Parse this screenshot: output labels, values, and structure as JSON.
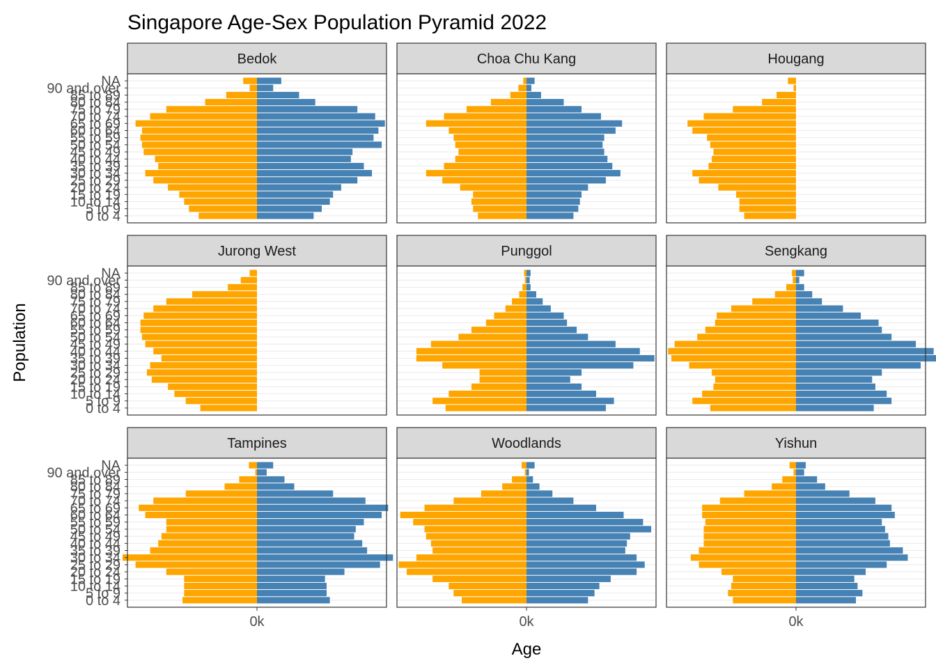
{
  "title": "Singapore Age-Sex Population Pyramid 2022",
  "xlabel": "Age",
  "ylabel": "Population",
  "colors": {
    "female": "#FFA500",
    "male": "#4682B4",
    "strip_bg": "#D9D9D9",
    "grid": "#EBEBEB",
    "border": "#333333",
    "tick_text": "#4D4D4D"
  },
  "chart_data": {
    "type": "bar",
    "orientation": "horizontal-pyramid",
    "facet_layout": "3x3",
    "x_tick_labels": [
      "0k"
    ],
    "categories": [
      "0 to 4",
      "5 to 9",
      "10 to 14",
      "15 to 19",
      "20 to 24",
      "25 to 29",
      "30 to 34",
      "35 to 39",
      "40 to 44",
      "45 to 49",
      "50 to 54",
      "55 to 59",
      "60 to 64",
      "65 to 69",
      "70 to 74",
      "75 to 79",
      "80 to 84",
      "85 to 89",
      "90 and over",
      "NA"
    ],
    "axis_range": [
      -8,
      8
    ],
    "facets": [
      {
        "name": "Bedok",
        "female": [
          3.6,
          4.2,
          4.5,
          4.8,
          5.5,
          6.4,
          6.9,
          6.1,
          6.3,
          7.0,
          7.1,
          7.2,
          7.1,
          7.5,
          6.6,
          5.6,
          3.2,
          1.9,
          0.45,
          0.85
        ],
        "male": [
          3.5,
          4.0,
          4.5,
          4.7,
          5.2,
          6.2,
          7.1,
          6.6,
          5.8,
          5.9,
          7.7,
          7.2,
          7.5,
          7.9,
          7.3,
          6.2,
          3.6,
          2.6,
          1.0,
          1.5
        ]
      },
      {
        "name": "Choa Chu Kang",
        "female": [
          3.0,
          3.3,
          3.4,
          3.3,
          4.1,
          5.2,
          6.2,
          5.1,
          4.4,
          4.2,
          4.4,
          4.5,
          4.8,
          6.2,
          5.1,
          3.7,
          2.2,
          1.0,
          0.5,
          0.2
        ],
        "male": [
          2.9,
          3.2,
          3.3,
          3.4,
          3.8,
          4.9,
          5.8,
          5.3,
          5.0,
          4.8,
          4.7,
          4.8,
          5.5,
          5.9,
          4.6,
          3.4,
          2.3,
          0.9,
          0.3,
          0.5
        ]
      },
      {
        "name": "Hougang",
        "female": [
          3.2,
          3.5,
          3.5,
          3.7,
          4.8,
          6.0,
          6.4,
          5.4,
          5.2,
          5.1,
          5.3,
          5.5,
          6.4,
          6.7,
          5.7,
          3.9,
          2.1,
          1.2,
          0.15,
          0.5
        ]
      },
      {
        "name": "Jurong West",
        "female": [
          3.5,
          4.4,
          5.1,
          5.5,
          6.5,
          6.8,
          6.6,
          5.9,
          6.4,
          6.9,
          7.1,
          7.2,
          7.2,
          7.0,
          6.4,
          5.6,
          4.0,
          1.8,
          1.0,
          0.45
        ]
      },
      {
        "name": "Punggol",
        "female": [
          5.0,
          5.8,
          4.8,
          3.4,
          2.9,
          2.9,
          5.2,
          6.8,
          6.8,
          5.9,
          4.2,
          3.4,
          2.5,
          2.0,
          1.3,
          0.9,
          0.45,
          0.25,
          0.1,
          0.15
        ],
        "male": [
          4.9,
          5.4,
          4.3,
          3.4,
          2.7,
          3.4,
          6.6,
          7.9,
          7.0,
          5.5,
          3.8,
          3.1,
          2.5,
          2.3,
          1.5,
          1.0,
          0.6,
          0.25,
          0.2,
          0.25
        ]
      },
      {
        "name": "Sengkang",
        "female": [
          5.3,
          6.4,
          5.8,
          5.1,
          5.0,
          5.2,
          6.6,
          7.7,
          7.9,
          7.5,
          6.1,
          5.6,
          5.0,
          4.9,
          4.0,
          2.7,
          1.3,
          0.6,
          0.2,
          0.25
        ],
        "male": [
          4.8,
          5.9,
          5.6,
          4.9,
          4.7,
          5.3,
          7.7,
          8.8,
          8.5,
          7.4,
          5.9,
          5.3,
          5.1,
          4.0,
          2.9,
          1.6,
          1.0,
          0.5,
          0.2,
          0.5
        ]
      },
      {
        "name": "Tampines",
        "female": [
          4.6,
          4.5,
          4.5,
          4.5,
          5.6,
          7.5,
          8.3,
          6.6,
          6.1,
          5.9,
          5.6,
          5.6,
          6.9,
          7.3,
          6.4,
          4.4,
          2.0,
          1.1,
          0.1,
          0.5
        ],
        "male": [
          4.5,
          4.3,
          4.3,
          4.2,
          5.4,
          7.6,
          8.4,
          6.8,
          6.5,
          6.0,
          6.1,
          6.6,
          7.7,
          8.1,
          6.7,
          4.7,
          2.3,
          1.7,
          0.6,
          1.0
        ]
      },
      {
        "name": "Woodlands",
        "female": [
          4.0,
          4.5,
          4.8,
          5.8,
          7.4,
          7.9,
          6.8,
          5.8,
          5.9,
          6.2,
          6.3,
          7.0,
          7.8,
          6.3,
          4.5,
          2.8,
          1.5,
          0.9,
          0.1,
          0.3
        ],
        "male": [
          3.8,
          4.2,
          4.5,
          5.2,
          6.8,
          7.3,
          6.8,
          6.1,
          6.2,
          6.4,
          7.7,
          7.2,
          6.0,
          4.3,
          2.9,
          1.6,
          0.8,
          0.4,
          0.15,
          0.5
        ]
      },
      {
        "name": "Yishun",
        "female": [
          3.9,
          4.2,
          4.0,
          3.9,
          4.6,
          6.0,
          6.5,
          6.0,
          5.7,
          5.7,
          5.7,
          5.6,
          5.8,
          5.8,
          4.7,
          3.2,
          1.5,
          0.85,
          0.15,
          0.4
        ],
        "male": [
          3.7,
          4.1,
          3.8,
          3.6,
          4.3,
          5.6,
          6.9,
          6.6,
          5.8,
          5.7,
          5.5,
          5.3,
          6.1,
          5.9,
          4.9,
          3.3,
          1.8,
          1.3,
          0.5,
          0.6
        ]
      }
    ]
  }
}
